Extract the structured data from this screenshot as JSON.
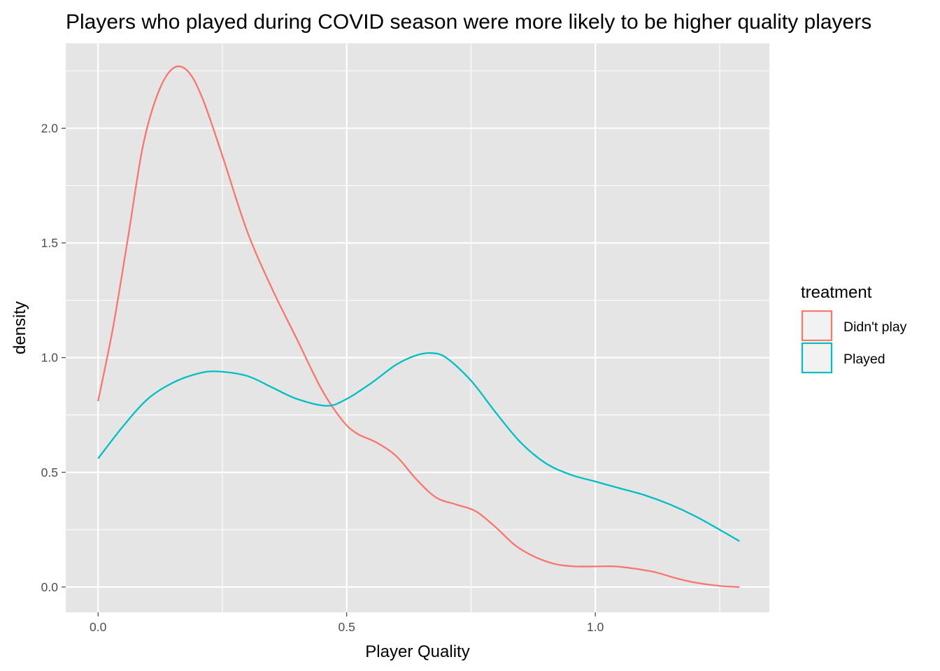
{
  "chart_data": {
    "type": "line",
    "title": "Players who played during COVID season were more likely to be higher quality players",
    "xlabel": "Player Quality",
    "ylabel": "density",
    "xlim": [
      -0.065,
      1.35
    ],
    "ylim": [
      -0.11,
      2.37
    ],
    "x_ticks": [
      {
        "value": 0.0,
        "label": "0.0"
      },
      {
        "value": 0.5,
        "label": "0.5"
      },
      {
        "value": 1.0,
        "label": "1.0"
      }
    ],
    "x_minor_ticks": [
      0.25,
      0.75,
      1.25
    ],
    "y_ticks": [
      {
        "value": 0.0,
        "label": "0.0"
      },
      {
        "value": 0.5,
        "label": "0.5"
      },
      {
        "value": 1.0,
        "label": "1.0"
      },
      {
        "value": 1.5,
        "label": "1.5"
      },
      {
        "value": 2.0,
        "label": "2.0"
      }
    ],
    "y_minor_ticks": [
      0.25,
      0.75,
      1.25,
      1.75,
      2.25
    ],
    "grid": true,
    "panel_color": "#e5e5e5",
    "legend": {
      "title": "treatment",
      "position": "right"
    },
    "series": [
      {
        "name": "Didn't play",
        "color": "#F8766D",
        "points": [
          [
            0.0,
            0.81
          ],
          [
            0.03,
            1.13
          ],
          [
            0.06,
            1.52
          ],
          [
            0.09,
            1.92
          ],
          [
            0.12,
            2.15
          ],
          [
            0.15,
            2.26
          ],
          [
            0.18,
            2.25
          ],
          [
            0.21,
            2.13
          ],
          [
            0.25,
            1.88
          ],
          [
            0.3,
            1.55
          ],
          [
            0.35,
            1.3
          ],
          [
            0.4,
            1.08
          ],
          [
            0.45,
            0.86
          ],
          [
            0.49,
            0.73
          ],
          [
            0.52,
            0.67
          ],
          [
            0.56,
            0.63
          ],
          [
            0.6,
            0.57
          ],
          [
            0.64,
            0.47
          ],
          [
            0.68,
            0.39
          ],
          [
            0.72,
            0.36
          ],
          [
            0.76,
            0.33
          ],
          [
            0.8,
            0.26
          ],
          [
            0.84,
            0.18
          ],
          [
            0.88,
            0.13
          ],
          [
            0.92,
            0.1
          ],
          [
            0.96,
            0.09
          ],
          [
            1.0,
            0.09
          ],
          [
            1.04,
            0.09
          ],
          [
            1.08,
            0.08
          ],
          [
            1.12,
            0.065
          ],
          [
            1.16,
            0.04
          ],
          [
            1.2,
            0.02
          ],
          [
            1.25,
            0.005
          ],
          [
            1.29,
            0.0
          ]
        ]
      },
      {
        "name": "Played",
        "color": "#00BFC4",
        "points": [
          [
            0.0,
            0.56
          ],
          [
            0.05,
            0.7
          ],
          [
            0.1,
            0.82
          ],
          [
            0.15,
            0.89
          ],
          [
            0.2,
            0.93
          ],
          [
            0.24,
            0.94
          ],
          [
            0.3,
            0.92
          ],
          [
            0.35,
            0.87
          ],
          [
            0.4,
            0.82
          ],
          [
            0.46,
            0.79
          ],
          [
            0.5,
            0.82
          ],
          [
            0.55,
            0.89
          ],
          [
            0.6,
            0.97
          ],
          [
            0.64,
            1.01
          ],
          [
            0.67,
            1.02
          ],
          [
            0.7,
            1.0
          ],
          [
            0.75,
            0.9
          ],
          [
            0.8,
            0.76
          ],
          [
            0.85,
            0.63
          ],
          [
            0.9,
            0.54
          ],
          [
            0.95,
            0.49
          ],
          [
            1.0,
            0.46
          ],
          [
            1.05,
            0.43
          ],
          [
            1.1,
            0.4
          ],
          [
            1.15,
            0.36
          ],
          [
            1.2,
            0.31
          ],
          [
            1.25,
            0.25
          ],
          [
            1.29,
            0.2
          ]
        ]
      }
    ]
  }
}
